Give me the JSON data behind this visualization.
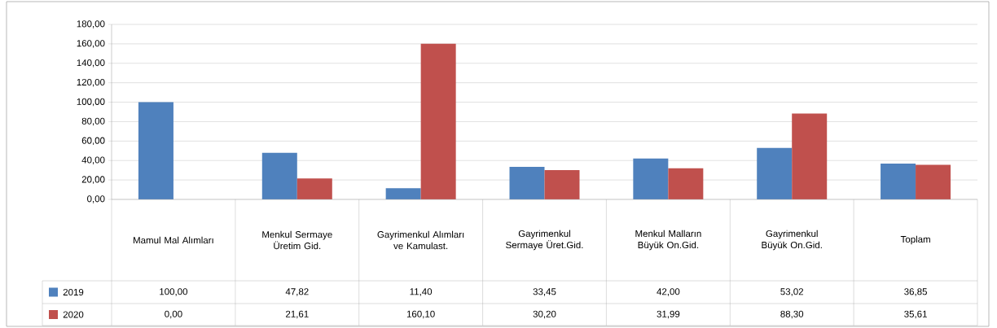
{
  "chart_data": {
    "type": "bar",
    "categories": [
      "Mamul Mal Alımları",
      "Menkul Sermaye Üretim Gid.",
      "Gayrimenkul Alımları ve Kamulast.",
      "Gayrimenkul Sermaye Üret.Gid.",
      "Menkul Malların Büyük On.Gid.",
      "Gayrimenkul Büyük On.Gid.",
      "Toplam"
    ],
    "series": [
      {
        "name": "2019",
        "color": "#4f81bd",
        "values": [
          100.0,
          47.82,
          11.4,
          33.45,
          42.0,
          53.02,
          36.85
        ],
        "value_labels": [
          "100,00",
          "47,82",
          "11,40",
          "33,45",
          "42,00",
          "53,02",
          "36,85"
        ]
      },
      {
        "name": "2020",
        "color": "#c0504d",
        "values": [
          0.0,
          21.61,
          160.1,
          30.2,
          31.99,
          88.3,
          35.61
        ],
        "value_labels": [
          "0,00",
          "21,61",
          "160,10",
          "30,20",
          "31,99",
          "88,30",
          "35,61"
        ]
      }
    ],
    "ylim": [
      0,
      180
    ],
    "yticks": [
      {
        "value": 0,
        "label": "0,00"
      },
      {
        "value": 20,
        "label": "20,00"
      },
      {
        "value": 40,
        "label": "40,00"
      },
      {
        "value": 60,
        "label": "60,00"
      },
      {
        "value": 80,
        "label": "80,00"
      },
      {
        "value": 100,
        "label": "100,00"
      },
      {
        "value": 120,
        "label": "120,00"
      },
      {
        "value": 140,
        "label": "140,00"
      },
      {
        "value": 160,
        "label": "160,00"
      },
      {
        "value": 180,
        "label": "180,00"
      }
    ],
    "grid": "y",
    "legend": "bottom left"
  }
}
